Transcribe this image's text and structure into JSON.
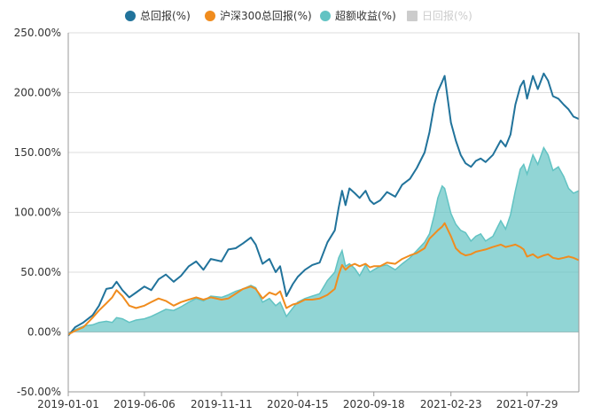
{
  "chart_data": {
    "type": "line",
    "title": "",
    "xlabel": "",
    "ylabel": "",
    "ylim": [
      -50,
      250
    ],
    "y_ticks": [
      "-50.00%",
      "0.00%",
      "50.00%",
      "100.00%",
      "150.00%",
      "200.00%",
      "250.00%"
    ],
    "x_ticks": [
      "2019-01-01",
      "2019-06-06",
      "2019-11-11",
      "2020-04-15",
      "2020-09-18",
      "2021-02-23",
      "2021-07-29"
    ],
    "x_range": [
      "2019-01-01",
      "2021-11-12"
    ],
    "grid": "horizontal",
    "legend_position": "top-center",
    "legend": [
      {
        "name": "总回报(%)",
        "color": "#21739b",
        "active": true
      },
      {
        "name": "沪深300总回报(%)",
        "color": "#f08c1e",
        "active": true
      },
      {
        "name": "超额收益(%)",
        "color": "#62c3c3",
        "active": true
      },
      {
        "name": "日回报(%)",
        "color": "#cccccc",
        "active": false
      }
    ],
    "series": [
      {
        "name": "总回报(%)",
        "style": "line",
        "color": "#21739b",
        "points": [
          [
            "2019-01-01",
            -3
          ],
          [
            "2019-01-15",
            4
          ],
          [
            "2019-02-01",
            8
          ],
          [
            "2019-02-20",
            14
          ],
          [
            "2019-03-05",
            22
          ],
          [
            "2019-03-20",
            36
          ],
          [
            "2019-04-01",
            37
          ],
          [
            "2019-04-10",
            42
          ],
          [
            "2019-04-22",
            35
          ],
          [
            "2019-05-06",
            29
          ],
          [
            "2019-05-20",
            33
          ],
          [
            "2019-06-06",
            38
          ],
          [
            "2019-06-20",
            35
          ],
          [
            "2019-07-05",
            44
          ],
          [
            "2019-07-20",
            48
          ],
          [
            "2019-08-05",
            42
          ],
          [
            "2019-08-20",
            47
          ],
          [
            "2019-09-05",
            55
          ],
          [
            "2019-09-20",
            59
          ],
          [
            "2019-10-05",
            52
          ],
          [
            "2019-10-20",
            61
          ],
          [
            "2019-11-11",
            59
          ],
          [
            "2019-11-25",
            69
          ],
          [
            "2019-12-10",
            70
          ],
          [
            "2019-12-25",
            74
          ],
          [
            "2020-01-10",
            79
          ],
          [
            "2020-01-20",
            73
          ],
          [
            "2020-02-03",
            57
          ],
          [
            "2020-02-17",
            61
          ],
          [
            "2020-03-01",
            50
          ],
          [
            "2020-03-10",
            55
          ],
          [
            "2020-03-23",
            30
          ],
          [
            "2020-04-05",
            40
          ],
          [
            "2020-04-15",
            46
          ],
          [
            "2020-04-30",
            52
          ],
          [
            "2020-05-15",
            56
          ],
          [
            "2020-05-30",
            58
          ],
          [
            "2020-06-15",
            75
          ],
          [
            "2020-06-30",
            85
          ],
          [
            "2020-07-08",
            104
          ],
          [
            "2020-07-15",
            118
          ],
          [
            "2020-07-22",
            106
          ],
          [
            "2020-07-30",
            120
          ],
          [
            "2020-08-10",
            116
          ],
          [
            "2020-08-20",
            112
          ],
          [
            "2020-09-01",
            118
          ],
          [
            "2020-09-10",
            110
          ],
          [
            "2020-09-18",
            107
          ],
          [
            "2020-10-01",
            110
          ],
          [
            "2020-10-15",
            117
          ],
          [
            "2020-11-01",
            113
          ],
          [
            "2020-11-15",
            123
          ],
          [
            "2020-12-01",
            128
          ],
          [
            "2020-12-15",
            137
          ],
          [
            "2020-12-31",
            150
          ],
          [
            "2021-01-10",
            167
          ],
          [
            "2021-01-20",
            190
          ],
          [
            "2021-01-27",
            201
          ],
          [
            "2021-02-05",
            209
          ],
          [
            "2021-02-10",
            214
          ],
          [
            "2021-02-23",
            175
          ],
          [
            "2021-03-05",
            160
          ],
          [
            "2021-03-15",
            148
          ],
          [
            "2021-03-25",
            141
          ],
          [
            "2021-04-05",
            138
          ],
          [
            "2021-04-15",
            143
          ],
          [
            "2021-04-25",
            145
          ],
          [
            "2021-05-05",
            142
          ],
          [
            "2021-05-20",
            148
          ],
          [
            "2021-06-05",
            160
          ],
          [
            "2021-06-15",
            155
          ],
          [
            "2021-06-25",
            165
          ],
          [
            "2021-07-05",
            190
          ],
          [
            "2021-07-15",
            205
          ],
          [
            "2021-07-22",
            210
          ],
          [
            "2021-07-29",
            195
          ],
          [
            "2021-08-10",
            214
          ],
          [
            "2021-08-20",
            203
          ],
          [
            "2021-09-01",
            216
          ],
          [
            "2021-09-10",
            210
          ],
          [
            "2021-09-20",
            197
          ],
          [
            "2021-10-01",
            195
          ],
          [
            "2021-10-12",
            190
          ],
          [
            "2021-10-22",
            186
          ],
          [
            "2021-11-01",
            180
          ],
          [
            "2021-11-12",
            178
          ]
        ]
      },
      {
        "name": "沪深300总回报(%)",
        "style": "line",
        "color": "#f08c1e",
        "points": [
          [
            "2019-01-01",
            -2
          ],
          [
            "2019-01-15",
            1
          ],
          [
            "2019-02-01",
            4
          ],
          [
            "2019-02-20",
            12
          ],
          [
            "2019-03-05",
            18
          ],
          [
            "2019-03-20",
            24
          ],
          [
            "2019-04-01",
            29
          ],
          [
            "2019-04-10",
            35
          ],
          [
            "2019-04-22",
            30
          ],
          [
            "2019-05-06",
            22
          ],
          [
            "2019-05-20",
            20
          ],
          [
            "2019-06-06",
            22
          ],
          [
            "2019-06-20",
            25
          ],
          [
            "2019-07-05",
            28
          ],
          [
            "2019-07-20",
            26
          ],
          [
            "2019-08-05",
            22
          ],
          [
            "2019-08-20",
            25
          ],
          [
            "2019-09-05",
            27
          ],
          [
            "2019-09-20",
            29
          ],
          [
            "2019-10-05",
            27
          ],
          [
            "2019-10-20",
            29
          ],
          [
            "2019-11-11",
            27
          ],
          [
            "2019-11-25",
            28
          ],
          [
            "2019-12-10",
            32
          ],
          [
            "2019-12-25",
            36
          ],
          [
            "2020-01-10",
            38
          ],
          [
            "2020-01-20",
            36
          ],
          [
            "2020-02-03",
            28
          ],
          [
            "2020-02-17",
            33
          ],
          [
            "2020-03-01",
            31
          ],
          [
            "2020-03-10",
            34
          ],
          [
            "2020-03-23",
            20
          ],
          [
            "2020-04-05",
            23
          ],
          [
            "2020-04-15",
            24
          ],
          [
            "2020-04-30",
            27
          ],
          [
            "2020-05-15",
            27
          ],
          [
            "2020-05-30",
            28
          ],
          [
            "2020-06-15",
            31
          ],
          [
            "2020-06-30",
            36
          ],
          [
            "2020-07-08",
            48
          ],
          [
            "2020-07-15",
            56
          ],
          [
            "2020-07-22",
            52
          ],
          [
            "2020-07-30",
            55
          ],
          [
            "2020-08-10",
            57
          ],
          [
            "2020-08-20",
            55
          ],
          [
            "2020-09-01",
            57
          ],
          [
            "2020-09-10",
            54
          ],
          [
            "2020-09-18",
            55
          ],
          [
            "2020-10-01",
            55
          ],
          [
            "2020-10-15",
            58
          ],
          [
            "2020-11-01",
            57
          ],
          [
            "2020-11-15",
            61
          ],
          [
            "2020-12-01",
            64
          ],
          [
            "2020-12-15",
            66
          ],
          [
            "2020-12-31",
            70
          ],
          [
            "2021-01-10",
            78
          ],
          [
            "2021-01-20",
            82
          ],
          [
            "2021-01-27",
            85
          ],
          [
            "2021-02-05",
            88
          ],
          [
            "2021-02-10",
            91
          ],
          [
            "2021-02-23",
            80
          ],
          [
            "2021-03-05",
            70
          ],
          [
            "2021-03-15",
            66
          ],
          [
            "2021-03-25",
            64
          ],
          [
            "2021-04-05",
            65
          ],
          [
            "2021-04-15",
            67
          ],
          [
            "2021-04-25",
            68
          ],
          [
            "2021-05-05",
            69
          ],
          [
            "2021-05-20",
            71
          ],
          [
            "2021-06-05",
            73
          ],
          [
            "2021-06-15",
            71
          ],
          [
            "2021-06-25",
            72
          ],
          [
            "2021-07-05",
            73
          ],
          [
            "2021-07-15",
            71
          ],
          [
            "2021-07-22",
            69
          ],
          [
            "2021-07-29",
            63
          ],
          [
            "2021-08-10",
            65
          ],
          [
            "2021-08-20",
            62
          ],
          [
            "2021-09-01",
            64
          ],
          [
            "2021-09-10",
            65
          ],
          [
            "2021-09-20",
            62
          ],
          [
            "2021-10-01",
            61
          ],
          [
            "2021-10-12",
            62
          ],
          [
            "2021-10-22",
            63
          ],
          [
            "2021-11-01",
            62
          ],
          [
            "2021-11-12",
            60
          ]
        ]
      },
      {
        "name": "超额收益(%)",
        "style": "area",
        "color": "#62c3c3",
        "points": [
          [
            "2019-01-01",
            -2
          ],
          [
            "2019-01-15",
            2
          ],
          [
            "2019-02-01",
            5
          ],
          [
            "2019-02-20",
            6
          ],
          [
            "2019-03-05",
            8
          ],
          [
            "2019-03-20",
            9
          ],
          [
            "2019-04-01",
            8
          ],
          [
            "2019-04-10",
            12
          ],
          [
            "2019-04-22",
            11
          ],
          [
            "2019-05-06",
            8
          ],
          [
            "2019-05-20",
            10
          ],
          [
            "2019-06-06",
            11
          ],
          [
            "2019-06-20",
            13
          ],
          [
            "2019-07-05",
            16
          ],
          [
            "2019-07-20",
            19
          ],
          [
            "2019-08-05",
            18
          ],
          [
            "2019-08-20",
            21
          ],
          [
            "2019-09-05",
            25
          ],
          [
            "2019-09-20",
            28
          ],
          [
            "2019-10-05",
            26
          ],
          [
            "2019-10-20",
            30
          ],
          [
            "2019-11-11",
            29
          ],
          [
            "2019-11-25",
            31
          ],
          [
            "2019-12-10",
            34
          ],
          [
            "2019-12-25",
            36
          ],
          [
            "2020-01-10",
            39
          ],
          [
            "2020-01-20",
            37
          ],
          [
            "2020-02-03",
            25
          ],
          [
            "2020-02-17",
            28
          ],
          [
            "2020-03-01",
            22
          ],
          [
            "2020-03-10",
            25
          ],
          [
            "2020-03-23",
            13
          ],
          [
            "2020-04-05",
            20
          ],
          [
            "2020-04-15",
            25
          ],
          [
            "2020-04-30",
            28
          ],
          [
            "2020-05-15",
            30
          ],
          [
            "2020-05-30",
            32
          ],
          [
            "2020-06-15",
            43
          ],
          [
            "2020-06-30",
            50
          ],
          [
            "2020-07-08",
            62
          ],
          [
            "2020-07-15",
            68
          ],
          [
            "2020-07-22",
            55
          ],
          [
            "2020-07-30",
            57
          ],
          [
            "2020-08-10",
            53
          ],
          [
            "2020-08-20",
            47
          ],
          [
            "2020-09-01",
            56
          ],
          [
            "2020-09-10",
            50
          ],
          [
            "2020-09-18",
            52
          ],
          [
            "2020-10-01",
            55
          ],
          [
            "2020-10-15",
            56
          ],
          [
            "2020-11-01",
            52
          ],
          [
            "2020-11-15",
            57
          ],
          [
            "2020-12-01",
            62
          ],
          [
            "2020-12-15",
            68
          ],
          [
            "2020-12-31",
            75
          ],
          [
            "2021-01-10",
            82
          ],
          [
            "2021-01-20",
            98
          ],
          [
            "2021-01-27",
            112
          ],
          [
            "2021-02-05",
            122
          ],
          [
            "2021-02-10",
            120
          ],
          [
            "2021-02-23",
            99
          ],
          [
            "2021-03-05",
            90
          ],
          [
            "2021-03-15",
            85
          ],
          [
            "2021-03-25",
            83
          ],
          [
            "2021-04-05",
            76
          ],
          [
            "2021-04-15",
            80
          ],
          [
            "2021-04-25",
            82
          ],
          [
            "2021-05-05",
            76
          ],
          [
            "2021-05-20",
            80
          ],
          [
            "2021-06-05",
            93
          ],
          [
            "2021-06-15",
            86
          ],
          [
            "2021-06-25",
            98
          ],
          [
            "2021-07-05",
            118
          ],
          [
            "2021-07-15",
            136
          ],
          [
            "2021-07-22",
            140
          ],
          [
            "2021-07-29",
            132
          ],
          [
            "2021-08-10",
            148
          ],
          [
            "2021-08-20",
            140
          ],
          [
            "2021-09-01",
            154
          ],
          [
            "2021-09-10",
            148
          ],
          [
            "2021-09-20",
            135
          ],
          [
            "2021-10-01",
            138
          ],
          [
            "2021-10-12",
            130
          ],
          [
            "2021-10-22",
            120
          ],
          [
            "2021-11-01",
            116
          ],
          [
            "2021-11-12",
            118
          ]
        ]
      }
    ]
  }
}
